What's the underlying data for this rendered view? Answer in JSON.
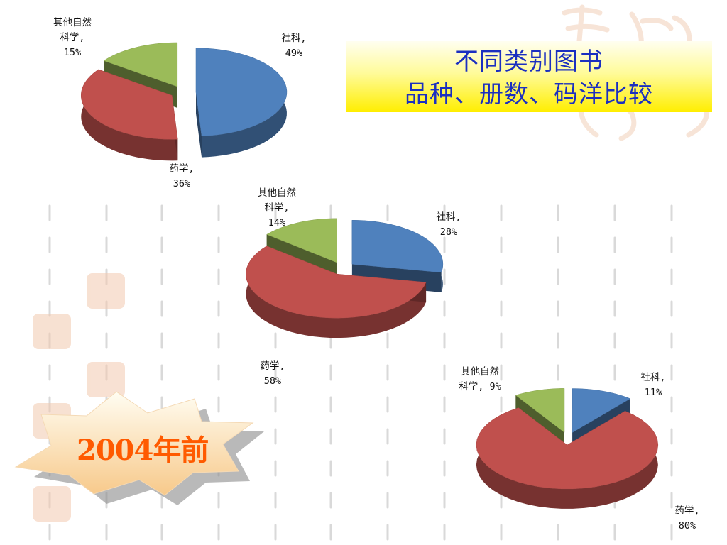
{
  "title": {
    "line1": "不同类别图书",
    "line2": "品种、册数、码洋比较"
  },
  "badge": {
    "text": "2004年前"
  },
  "colors": {
    "社科": "#4f81bd",
    "药学": "#c0504d",
    "其他自然科学": "#9bbb59"
  },
  "chart_data": [
    {
      "type": "pie",
      "exploded": true,
      "three_d": true,
      "slices": [
        {
          "category": "社科",
          "percent": 49,
          "label": [
            "社科,",
            "49%"
          ]
        },
        {
          "category": "药学",
          "percent": 36,
          "label": [
            "药学,",
            "36%"
          ]
        },
        {
          "category": "其他自然科学",
          "percent": 15,
          "label": [
            "其他自然",
            "科学,",
            "15%"
          ]
        }
      ]
    },
    {
      "type": "pie",
      "exploded": true,
      "three_d": true,
      "slices": [
        {
          "category": "社科",
          "percent": 28,
          "label": [
            "社科,",
            "28%"
          ]
        },
        {
          "category": "药学",
          "percent": 58,
          "label": [
            "药学,",
            "58%"
          ]
        },
        {
          "category": "其他自然科学",
          "percent": 14,
          "label": [
            "其他自然",
            "科学,",
            "14%"
          ]
        }
      ]
    },
    {
      "type": "pie",
      "exploded": true,
      "three_d": true,
      "slices": [
        {
          "category": "社科",
          "percent": 11,
          "label": [
            "社科,",
            "11%"
          ]
        },
        {
          "category": "药学",
          "percent": 80,
          "label": [
            "药学,",
            "80%"
          ]
        },
        {
          "category": "其他自然科学",
          "percent": 9,
          "label": [
            "其他自然",
            "科学, 9%"
          ]
        }
      ]
    }
  ]
}
